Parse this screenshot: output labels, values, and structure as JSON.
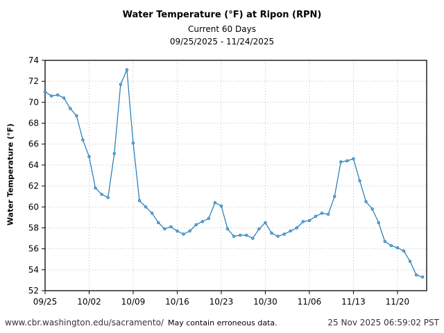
{
  "chart_data": {
    "type": "line",
    "title": "Water Temperature (°F) at Ripon (RPN)",
    "subtitle": [
      "Current 60 Days",
      "09/25/2025 - 11/24/2025"
    ],
    "xlabel": "",
    "ylabel": "Water Temperature (°F)",
    "ylim": [
      52,
      74
    ],
    "yticks": [
      52,
      54,
      56,
      58,
      60,
      62,
      64,
      66,
      68,
      70,
      72,
      74
    ],
    "xticks": [
      "09/25",
      "10/02",
      "10/09",
      "10/16",
      "10/23",
      "10/30",
      "11/06",
      "11/13",
      "11/20"
    ],
    "grid": true,
    "color": "#1f77b4",
    "x": [
      "09/25",
      "09/26",
      "09/27",
      "09/28",
      "09/29",
      "09/30",
      "10/01",
      "10/02",
      "10/03",
      "10/04",
      "10/05",
      "10/06",
      "10/07",
      "10/08",
      "10/09",
      "10/10",
      "10/11",
      "10/12",
      "10/13",
      "10/14",
      "10/15",
      "10/16",
      "10/17",
      "10/18",
      "10/19",
      "10/20",
      "10/21",
      "10/22",
      "10/23",
      "10/24",
      "10/25",
      "10/26",
      "10/27",
      "10/28",
      "10/29",
      "10/30",
      "10/31",
      "11/01",
      "11/02",
      "11/03",
      "11/04",
      "11/05",
      "11/06",
      "11/07",
      "11/08",
      "11/09",
      "11/10",
      "11/11",
      "11/12",
      "11/13",
      "11/14",
      "11/15",
      "11/16",
      "11/17",
      "11/18",
      "11/19",
      "11/20",
      "11/21",
      "11/22",
      "11/23",
      "11/24"
    ],
    "values": [
      71.0,
      70.6,
      70.7,
      70.4,
      69.4,
      68.7,
      66.4,
      64.8,
      61.8,
      61.2,
      60.9,
      65.1,
      71.7,
      73.1,
      66.1,
      60.6,
      60.0,
      59.4,
      58.5,
      57.9,
      58.1,
      57.7,
      57.4,
      57.7,
      58.3,
      58.6,
      58.9,
      60.4,
      60.1,
      57.9,
      57.2,
      57.3,
      57.3,
      57.0,
      57.9,
      58.5,
      57.5,
      57.2,
      57.4,
      57.7,
      58.0,
      58.6,
      58.7,
      59.1,
      59.4,
      59.3,
      61.0,
      64.3,
      64.4,
      64.6,
      62.5,
      60.5,
      59.8,
      58.5,
      56.7,
      56.3,
      56.1,
      55.8,
      54.8,
      53.5,
      53.3
    ]
  },
  "footer": {
    "url": "www.cbr.washington.edu/sacramento/",
    "note": "May contain erroneous data.",
    "timestamp": "25 Nov 2025 06:59:02 PST"
  }
}
